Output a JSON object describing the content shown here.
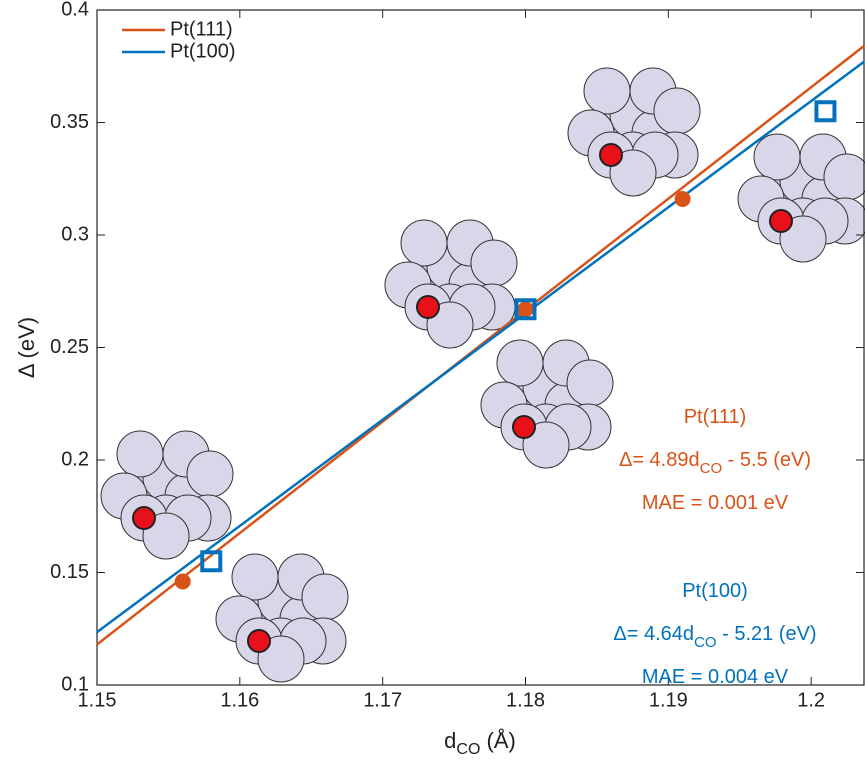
{
  "chart_data": {
    "type": "scatter",
    "xlabel": [
      "d",
      "CO",
      " (Å)"
    ],
    "ylabel": "Δ (eV)",
    "xlim": [
      1.15,
      1.2037
    ],
    "ylim": [
      0.1,
      0.4
    ],
    "xticks": [
      1.15,
      1.16,
      1.17,
      1.18,
      1.19,
      1.2
    ],
    "yticks": [
      0.1,
      0.15,
      0.2,
      0.25,
      0.3,
      0.35,
      0.4
    ],
    "legend": "top-left",
    "series": [
      {
        "name": "Pt(111)",
        "color": "#d95319",
        "marker": "circle",
        "x": [
          1.156,
          1.18,
          1.191
        ],
        "values": [
          0.146,
          0.267,
          0.316
        ],
        "fit": {
          "x": [
            1.15,
            1.2037
          ],
          "values": [
            0.118,
            0.384
          ]
        }
      },
      {
        "name": "Pt(100)",
        "color": "#0072bd",
        "marker": "square-open",
        "x": [
          1.158,
          1.18,
          1.201
        ],
        "values": [
          0.155,
          0.267,
          0.355
        ],
        "fit": {
          "x": [
            1.15,
            1.2037
          ],
          "values": [
            0.1235,
            0.377
          ]
        }
      }
    ],
    "annotations": [
      {
        "series": 0,
        "lines": [
          [
            "Pt(111)"
          ],
          [
            "Δ= 4.89d",
            "CO",
            " - 5.5 (eV)"
          ],
          [
            "MAE = 0.001 eV"
          ]
        ]
      },
      {
        "series": 1,
        "lines": [
          [
            "Pt(100)"
          ],
          [
            "Δ= 4.64d",
            "CO",
            " - 5.21 (eV)"
          ],
          [
            "MAE = 0.004 eV"
          ]
        ]
      }
    ]
  }
}
